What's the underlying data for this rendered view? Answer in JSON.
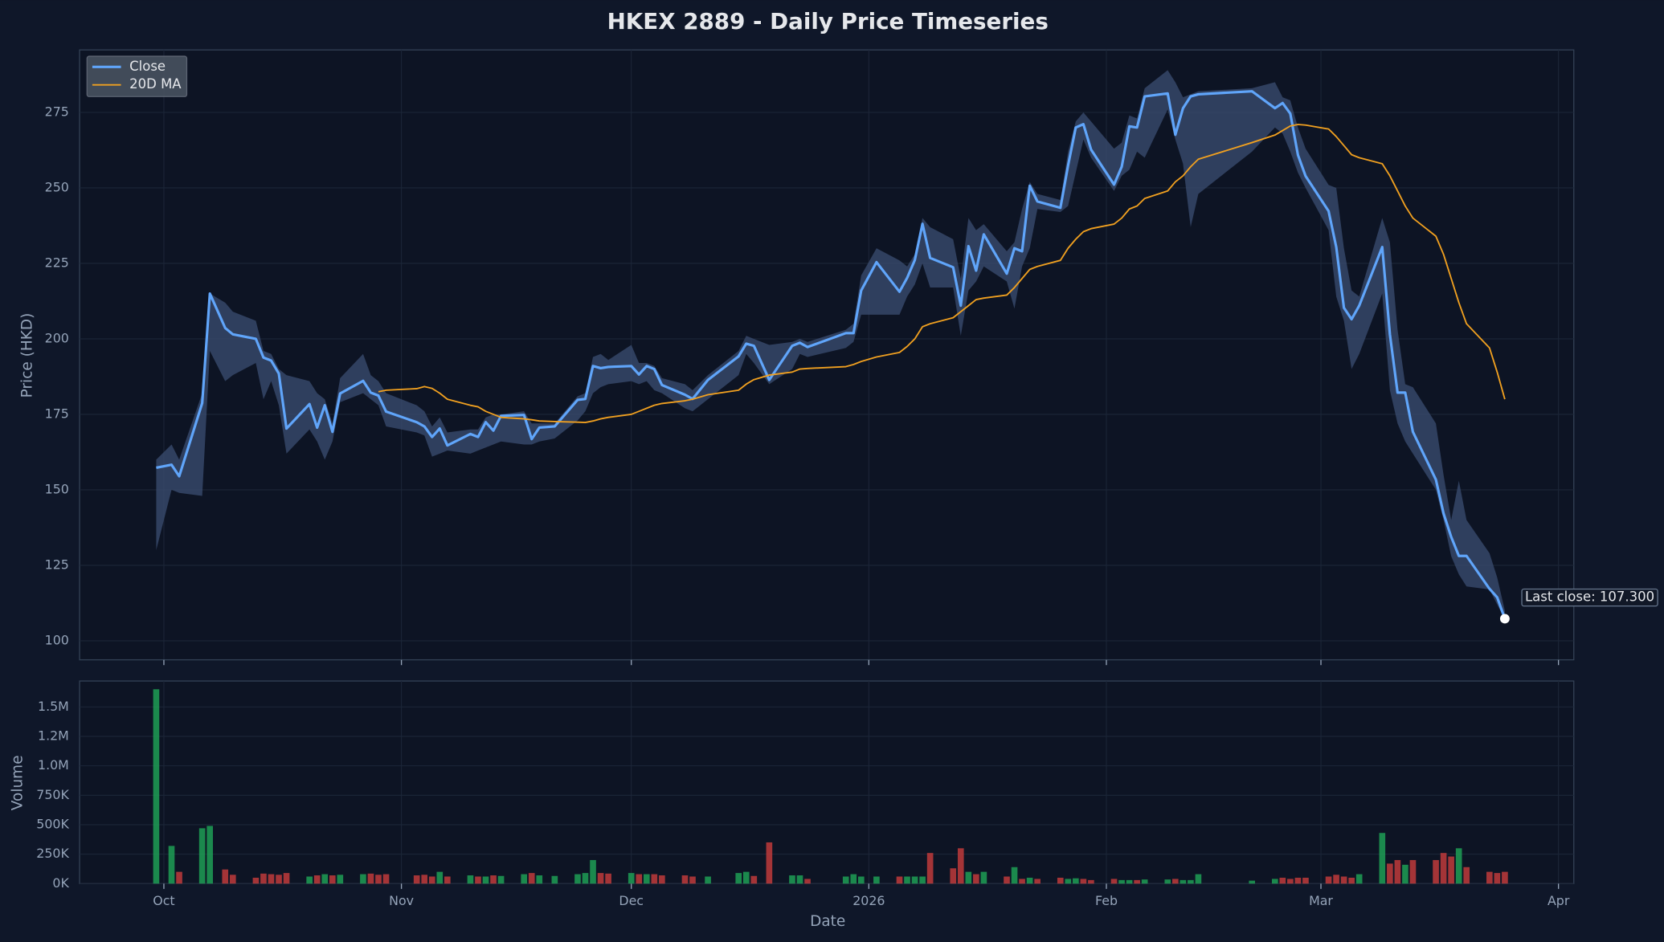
{
  "chart_data": {
    "type": "line",
    "title": "HKEX 2889 - Daily Price Timeseries",
    "xlabel": "Date",
    "ylabel": "Price (HKD)",
    "x": [
      "2025-09-30",
      "2025-10-02",
      "2025-10-03",
      "2025-10-06",
      "2025-10-07",
      "2025-10-09",
      "2025-10-10",
      "2025-10-13",
      "2025-10-14",
      "2025-10-15",
      "2025-10-16",
      "2025-10-17",
      "2025-10-20",
      "2025-10-21",
      "2025-10-22",
      "2025-10-23",
      "2025-10-24",
      "2025-10-27",
      "2025-10-28",
      "2025-10-29",
      "2025-10-30",
      "2025-11-03",
      "2025-11-04",
      "2025-11-05",
      "2025-11-06",
      "2025-11-07",
      "2025-11-10",
      "2025-11-11",
      "2025-11-12",
      "2025-11-13",
      "2025-11-14",
      "2025-11-17",
      "2025-11-18",
      "2025-11-19",
      "2025-11-21",
      "2025-11-24",
      "2025-11-25",
      "2025-11-26",
      "2025-11-27",
      "2025-11-28",
      "2025-12-01",
      "2025-12-02",
      "2025-12-03",
      "2025-12-04",
      "2025-12-05",
      "2025-12-08",
      "2025-12-09",
      "2025-12-11",
      "2025-12-15",
      "2025-12-16",
      "2025-12-17",
      "2025-12-19",
      "2025-12-22",
      "2025-12-23",
      "2025-12-24",
      "2025-12-29",
      "2025-12-30",
      "2025-12-31",
      "2026-01-02",
      "2026-01-05",
      "2026-01-06",
      "2026-01-07",
      "2026-01-08",
      "2026-01-09",
      "2026-01-12",
      "2026-01-13",
      "2026-01-14",
      "2026-01-15",
      "2026-01-16",
      "2026-01-19",
      "2026-01-20",
      "2026-01-21",
      "2026-01-22",
      "2026-01-23",
      "2026-01-26",
      "2026-01-27",
      "2026-01-28",
      "2026-01-29",
      "2026-01-30",
      "2026-02-02",
      "2026-02-03",
      "2026-02-04",
      "2026-02-05",
      "2026-02-06",
      "2026-02-09",
      "2026-02-10",
      "2026-02-11",
      "2026-02-12",
      "2026-02-13",
      "2026-02-20",
      "2026-02-23",
      "2026-02-24",
      "2026-02-25",
      "2026-02-26",
      "2026-02-27",
      "2026-03-02",
      "2026-03-03",
      "2026-03-04",
      "2026-03-05",
      "2026-03-06",
      "2026-03-09",
      "2026-03-10",
      "2026-03-11",
      "2026-03-12",
      "2026-03-13",
      "2026-03-16",
      "2026-03-17",
      "2026-03-18",
      "2026-03-19",
      "2026-03-20",
      "2026-03-23",
      "2026-03-24",
      "2026-03-25"
    ],
    "series": [
      {
        "name": "Close",
        "color": "#60a5fa",
        "values": [
          157.3,
          158.3,
          154.5,
          178.7,
          215,
          203.6,
          201.5,
          200,
          193.8,
          192.8,
          188.5,
          170.3,
          178.4,
          170.6,
          178,
          169.2,
          181.9,
          186.1,
          182.2,
          181.2,
          175.9,
          172.4,
          171,
          167.5,
          170.3,
          164.7,
          168.5,
          167.5,
          172.4,
          169.6,
          174.5,
          174.8,
          166.8,
          170.6,
          171,
          179.8,
          180.1,
          191,
          190.3,
          190.7,
          191,
          188.2,
          191,
          190,
          184.7,
          181.5,
          180.1,
          186.4,
          194.2,
          198.4,
          197.7,
          186.4,
          197.7,
          198.7,
          197.3,
          201.9,
          201.9,
          216,
          225.4,
          215.6,
          220.2,
          226.1,
          238.1,
          226.8,
          223.7,
          211,
          230.7,
          222.6,
          234.6,
          221.6,
          230,
          229,
          250.7,
          245.5,
          243.4,
          257.4,
          270,
          271.1,
          262.7,
          251.1,
          257,
          270.4,
          270,
          280.3,
          281.3,
          267.6,
          276.4,
          280.3,
          281,
          282,
          276.4,
          278.1,
          274.6,
          260.9,
          253.9,
          242.3,
          230.4,
          210.3,
          206.5,
          211,
          230.4,
          201.5,
          182.2,
          182.2,
          169.2,
          153.4,
          142.2,
          134.4,
          128.1,
          128.1,
          117.2,
          114.4,
          107.3
        ]
      },
      {
        "name": "20D MA",
        "color": "#f0a020",
        "values": [
          null,
          null,
          null,
          null,
          null,
          null,
          null,
          null,
          null,
          null,
          null,
          null,
          null,
          null,
          null,
          null,
          null,
          null,
          null,
          182.5,
          183,
          183.5,
          184.2,
          183.6,
          182,
          180,
          178,
          177.5,
          176,
          175,
          174,
          173.5,
          173.2,
          172.8,
          172.6,
          172.4,
          172.3,
          172.8,
          173.5,
          174,
          175,
          176,
          177,
          178,
          178.6,
          179.5,
          180,
          181.5,
          183,
          185,
          186.5,
          188,
          189,
          190,
          190.2,
          190.8,
          191.5,
          192.5,
          194,
          195.5,
          197.5,
          200,
          204,
          205,
          207,
          209,
          211,
          213,
          213.5,
          214.5,
          217,
          220,
          223,
          224,
          226,
          230,
          233,
          235.5,
          236.5,
          238,
          240,
          243,
          244,
          246.5,
          249,
          252,
          254,
          257,
          259.5,
          265,
          267.5,
          269,
          270.5,
          271,
          270.8,
          269.5,
          267,
          264,
          261,
          260,
          258,
          254,
          249,
          244,
          240,
          234,
          228,
          220,
          212,
          205,
          197,
          189,
          180
        ]
      }
    ],
    "high": [
      160,
      165,
      160,
      182,
      215,
      212,
      209,
      206,
      196,
      195,
      190,
      188,
      186,
      182,
      180,
      172,
      187,
      195,
      188,
      186,
      182,
      178,
      176,
      171,
      174,
      169,
      170,
      170,
      174,
      175,
      175,
      176,
      172,
      172,
      172,
      181,
      182,
      194,
      195,
      193,
      198,
      192,
      192,
      191,
      187,
      185,
      183,
      188,
      196,
      201,
      200,
      198,
      199,
      200,
      199,
      203,
      205,
      221,
      230,
      226,
      224,
      228,
      240,
      237,
      233,
      220,
      240,
      236,
      238,
      229,
      232,
      243,
      252,
      248,
      246,
      262,
      272,
      275,
      272,
      263,
      265,
      274,
      273,
      283,
      289,
      285,
      280,
      281,
      282,
      283,
      285,
      280,
      279,
      270,
      263,
      251,
      250,
      230,
      216,
      214,
      240,
      232,
      203,
      185,
      184,
      172,
      155,
      140,
      153,
      140,
      129,
      121,
      110
    ],
    "low": [
      130,
      150,
      149,
      148,
      196,
      186,
      188,
      192,
      180,
      186,
      178,
      162,
      170,
      166,
      160,
      166,
      179,
      182,
      180,
      178,
      171,
      169,
      168,
      161,
      162,
      163,
      162,
      163,
      164,
      165,
      166,
      165,
      165,
      166,
      167,
      173,
      176,
      182,
      184,
      185,
      186,
      185,
      186,
      183,
      182,
      177,
      176,
      180,
      188,
      195,
      192,
      185,
      190,
      195,
      194,
      197,
      199,
      208,
      208,
      208,
      214,
      218,
      225,
      217,
      217,
      201,
      216,
      219,
      224,
      219,
      210,
      224,
      230,
      243,
      242,
      244,
      255,
      266,
      260,
      249,
      254,
      256,
      262,
      260,
      276,
      266,
      258,
      237,
      248,
      262,
      270,
      268,
      262,
      255,
      250,
      236,
      214,
      206,
      190,
      195,
      215,
      183,
      172,
      166,
      162,
      150,
      140,
      128,
      122,
      118,
      117,
      112,
      107
    ],
    "band_color": "#3b4e72",
    "annotation": "Last close: 107.300",
    "xlim": [
      "2025-09-20",
      "2026-04-03"
    ],
    "xticks": [
      {
        "value": "2025-10-01",
        "label": "Oct"
      },
      {
        "value": "2025-11-01",
        "label": "Nov"
      },
      {
        "value": "2025-12-01",
        "label": "Dec"
      },
      {
        "value": "2026-01-01",
        "label": "2026"
      },
      {
        "value": "2026-02-01",
        "label": "Feb"
      },
      {
        "value": "2026-03-01",
        "label": "Mar"
      },
      {
        "value": "2026-04-01",
        "label": "Apr"
      }
    ],
    "ylim": [
      93.7,
      295.7
    ],
    "yticks": [
      100,
      125,
      150,
      175,
      200,
      225,
      250,
      275
    ],
    "grid": true,
    "legend": "upper left",
    "volume": {
      "ylabel": "Volume",
      "values": [
        1650000,
        320000,
        100000,
        470000,
        490000,
        120000,
        75000,
        50000,
        85000,
        80000,
        75000,
        90000,
        60000,
        70000,
        80000,
        70000,
        75000,
        80000,
        85000,
        75000,
        80000,
        70000,
        75000,
        60000,
        100000,
        60000,
        70000,
        60000,
        60000,
        70000,
        65000,
        80000,
        90000,
        70000,
        65000,
        80000,
        90000,
        200000,
        90000,
        85000,
        90000,
        80000,
        80000,
        80000,
        70000,
        70000,
        60000,
        60000,
        90000,
        100000,
        65000,
        350000,
        70000,
        70000,
        40000,
        60000,
        80000,
        60000,
        60000,
        60000,
        60000,
        60000,
        60000,
        260000,
        130000,
        300000,
        100000,
        80000,
        100000,
        60000,
        140000,
        40000,
        50000,
        40000,
        50000,
        40000,
        45000,
        40000,
        30000,
        40000,
        30000,
        30000,
        30000,
        35000,
        35000,
        40000,
        30000,
        30000,
        80000,
        25000,
        40000,
        50000,
        40000,
        50000,
        50000,
        60000,
        75000,
        60000,
        50000,
        80000,
        430000,
        170000,
        200000,
        160000,
        200000,
        200000,
        260000,
        230000,
        300000,
        140000,
        100000,
        90000,
        100000
      ],
      "colors": [
        "#1f9d55",
        "#1f9d55",
        "#c0393b",
        "#1f9d55",
        "#1f9d55",
        "#c0393b",
        "#c0393b",
        "#c0393b",
        "#c0393b",
        "#c0393b",
        "#c0393b",
        "#c0393b",
        "#1f9d55",
        "#c0393b",
        "#1f9d55",
        "#c0393b",
        "#1f9d55",
        "#1f9d55",
        "#c0393b",
        "#c0393b",
        "#c0393b",
        "#c0393b",
        "#c0393b",
        "#c0393b",
        "#1f9d55",
        "#c0393b",
        "#1f9d55",
        "#c0393b",
        "#1f9d55",
        "#c0393b",
        "#1f9d55",
        "#1f9d55",
        "#c0393b",
        "#1f9d55",
        "#1f9d55",
        "#1f9d55",
        "#1f9d55",
        "#1f9d55",
        "#c0393b",
        "#c0393b",
        "#1f9d55",
        "#c0393b",
        "#1f9d55",
        "#c0393b",
        "#c0393b",
        "#c0393b",
        "#c0393b",
        "#1f9d55",
        "#1f9d55",
        "#1f9d55",
        "#c0393b",
        "#c0393b",
        "#1f9d55",
        "#1f9d55",
        "#c0393b",
        "#1f9d55",
        "#1f9d55",
        "#1f9d55",
        "#1f9d55",
        "#c0393b",
        "#1f9d55",
        "#1f9d55",
        "#1f9d55",
        "#c0393b",
        "#c0393b",
        "#c0393b",
        "#1f9d55",
        "#c0393b",
        "#1f9d55",
        "#c0393b",
        "#1f9d55",
        "#c0393b",
        "#1f9d55",
        "#c0393b",
        "#c0393b",
        "#1f9d55",
        "#1f9d55",
        "#c0393b",
        "#c0393b",
        "#c0393b",
        "#1f9d55",
        "#1f9d55",
        "#c0393b",
        "#1f9d55",
        "#1f9d55",
        "#c0393b",
        "#1f9d55",
        "#1f9d55",
        "#1f9d55",
        "#1f9d55",
        "#1f9d55",
        "#c0393b",
        "#c0393b",
        "#c0393b",
        "#c0393b",
        "#c0393b",
        "#c0393b",
        "#c0393b",
        "#c0393b",
        "#1f9d55",
        "#1f9d55",
        "#c0393b",
        "#c0393b",
        "#1f9d55",
        "#c0393b",
        "#c0393b",
        "#c0393b",
        "#c0393b",
        "#1f9d55",
        "#c0393b",
        "#c0393b",
        "#c0393b",
        "#c0393b"
      ],
      "ylim": [
        0,
        1720000
      ],
      "yticks": [
        {
          "value": 0,
          "label": "0K"
        },
        {
          "value": 250000,
          "label": "250K"
        },
        {
          "value": 500000,
          "label": "500K"
        },
        {
          "value": 750000,
          "label": "750K"
        },
        {
          "value": 1000000,
          "label": "1.0M"
        },
        {
          "value": 1250000,
          "label": "1.2M"
        },
        {
          "value": 1500000,
          "label": "1.5M"
        }
      ]
    }
  }
}
